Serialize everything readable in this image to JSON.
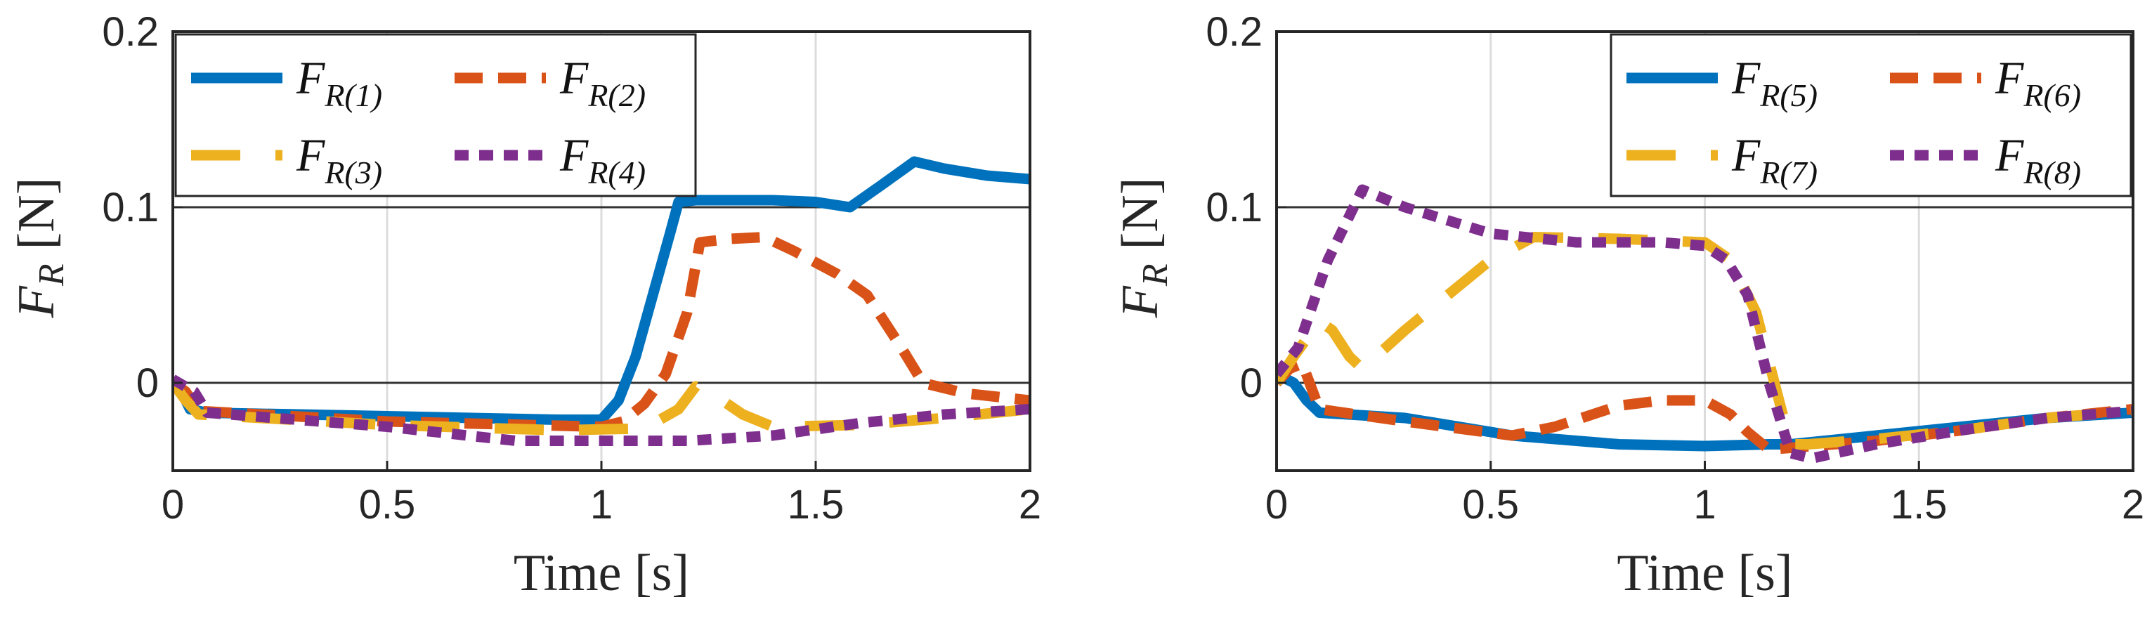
{
  "chart_data": [
    {
      "type": "line",
      "title": "",
      "xlabel": "Time [s]",
      "ylabel": {
        "symbol": "F",
        "sub": "R",
        "unit": "[N]"
      },
      "xlim": [
        0,
        2
      ],
      "ylim": [
        -0.05,
        0.2
      ],
      "xticks": [
        "0",
        "0.5",
        "1",
        "1.5",
        "2"
      ],
      "yticks": [
        "0",
        "0.1",
        "0.2"
      ],
      "legend": {
        "position": "top-left",
        "columns": 2
      },
      "series": [
        {
          "name": "F_R(1)",
          "label_main": "F",
          "label_sub": "R(1)",
          "color": "#0072BD",
          "style": "solid",
          "x": [
            0,
            0.02,
            0.04,
            0.08,
            0.5,
            0.9,
            1.0,
            1.04,
            1.08,
            1.12,
            1.16,
            1.18,
            1.22,
            1.4,
            1.5,
            1.58,
            1.65,
            1.73,
            1.8,
            1.9,
            2.0
          ],
          "y": [
            0.0,
            -0.005,
            -0.015,
            -0.017,
            -0.019,
            -0.021,
            -0.021,
            -0.01,
            0.015,
            0.05,
            0.085,
            0.103,
            0.104,
            0.104,
            0.103,
            0.1,
            0.112,
            0.126,
            0.122,
            0.118,
            0.116
          ]
        },
        {
          "name": "F_R(2)",
          "label_main": "F",
          "label_sub": "R(2)",
          "color": "#D95319",
          "style": "dashed",
          "x": [
            0,
            0.03,
            0.06,
            0.5,
            1.0,
            1.05,
            1.1,
            1.15,
            1.2,
            1.23,
            1.3,
            1.38,
            1.45,
            1.55,
            1.62,
            1.7,
            1.75,
            1.85,
            2.0
          ],
          "y": [
            0.0,
            -0.005,
            -0.016,
            -0.022,
            -0.025,
            -0.022,
            -0.012,
            0.005,
            0.04,
            0.08,
            0.082,
            0.083,
            0.075,
            0.062,
            0.05,
            0.02,
            0.0,
            -0.006,
            -0.01
          ]
        },
        {
          "name": "F_R(3)",
          "label_main": "F",
          "label_sub": "R(3)",
          "color": "#EDB120",
          "style": "longdash",
          "x": [
            0,
            0.03,
            0.06,
            0.5,
            0.9,
            1.1,
            1.18,
            1.22,
            1.27,
            1.33,
            1.4,
            1.6,
            1.8,
            2.0
          ],
          "y": [
            0.0,
            -0.01,
            -0.018,
            -0.024,
            -0.027,
            -0.026,
            -0.015,
            -0.002,
            -0.008,
            -0.018,
            -0.025,
            -0.024,
            -0.02,
            -0.015
          ]
        },
        {
          "name": "F_R(4)",
          "label_main": "F",
          "label_sub": "R(4)",
          "color": "#7E2F8E",
          "style": "dotted",
          "x": [
            0,
            0.05,
            0.08,
            0.5,
            0.8,
            1.0,
            1.2,
            1.4,
            1.6,
            1.8,
            2.0
          ],
          "y": [
            0.002,
            -0.005,
            -0.017,
            -0.025,
            -0.033,
            -0.033,
            -0.033,
            -0.03,
            -0.023,
            -0.018,
            -0.015
          ]
        }
      ]
    },
    {
      "type": "line",
      "title": "",
      "xlabel": "Time [s]",
      "ylabel": {
        "symbol": "F",
        "sub": "R",
        "unit": "[N]"
      },
      "xlim": [
        0,
        2
      ],
      "ylim": [
        -0.05,
        0.2
      ],
      "xticks": [
        "0",
        "0.5",
        "1",
        "1.5",
        "2"
      ],
      "yticks": [
        "0",
        "0.1",
        "0.2"
      ],
      "legend": {
        "position": "top-right",
        "columns": 2
      },
      "series": [
        {
          "name": "F_R(5)",
          "label_main": "F",
          "label_sub": "R(5)",
          "color": "#0072BD",
          "style": "solid",
          "x": [
            0,
            0.04,
            0.07,
            0.1,
            0.3,
            0.55,
            0.8,
            1.0,
            1.15,
            1.2,
            1.4,
            1.6,
            1.8,
            2.0
          ],
          "y": [
            0.005,
            0.0,
            -0.01,
            -0.017,
            -0.02,
            -0.03,
            -0.035,
            -0.036,
            -0.035,
            -0.035,
            -0.03,
            -0.025,
            -0.02,
            -0.017
          ]
        },
        {
          "name": "F_R(6)",
          "label_main": "F",
          "label_sub": "R(6)",
          "color": "#D95319",
          "style": "dashed",
          "x": [
            0,
            0.03,
            0.06,
            0.1,
            0.3,
            0.55,
            0.65,
            0.8,
            0.9,
            1.0,
            1.06,
            1.1,
            1.15,
            1.2,
            1.4,
            1.6,
            1.8,
            2.0
          ],
          "y": [
            0.0,
            0.008,
            0.011,
            -0.015,
            -0.022,
            -0.03,
            -0.025,
            -0.013,
            -0.01,
            -0.01,
            -0.018,
            -0.028,
            -0.038,
            -0.037,
            -0.033,
            -0.027,
            -0.02,
            -0.015
          ]
        },
        {
          "name": "F_R(7)",
          "label_main": "F",
          "label_sub": "R(7)",
          "color": "#EDB120",
          "style": "longdash",
          "x": [
            0,
            0.04,
            0.1,
            0.13,
            0.17,
            0.2,
            0.3,
            0.4,
            0.5,
            0.6,
            0.8,
            1.0,
            1.06,
            1.12,
            1.2,
            1.24,
            1.4,
            1.6,
            1.8,
            2.0
          ],
          "y": [
            0.0,
            0.015,
            0.035,
            0.03,
            0.015,
            0.008,
            0.03,
            0.05,
            0.07,
            0.083,
            0.082,
            0.08,
            0.07,
            0.04,
            -0.035,
            -0.035,
            -0.032,
            -0.027,
            -0.02,
            -0.016
          ]
        },
        {
          "name": "F_R(8)",
          "label_main": "F",
          "label_sub": "R(8)",
          "color": "#7E2F8E",
          "style": "dotted",
          "x": [
            0,
            0.05,
            0.12,
            0.2,
            0.3,
            0.5,
            0.7,
            0.9,
            1.0,
            1.05,
            1.1,
            1.15,
            1.2,
            1.25,
            1.4,
            1.6,
            1.8,
            2.0
          ],
          "y": [
            0.005,
            0.02,
            0.07,
            0.11,
            0.1,
            0.085,
            0.08,
            0.08,
            0.078,
            0.07,
            0.05,
            0.0,
            -0.04,
            -0.043,
            -0.035,
            -0.027,
            -0.02,
            -0.016
          ]
        }
      ]
    }
  ]
}
